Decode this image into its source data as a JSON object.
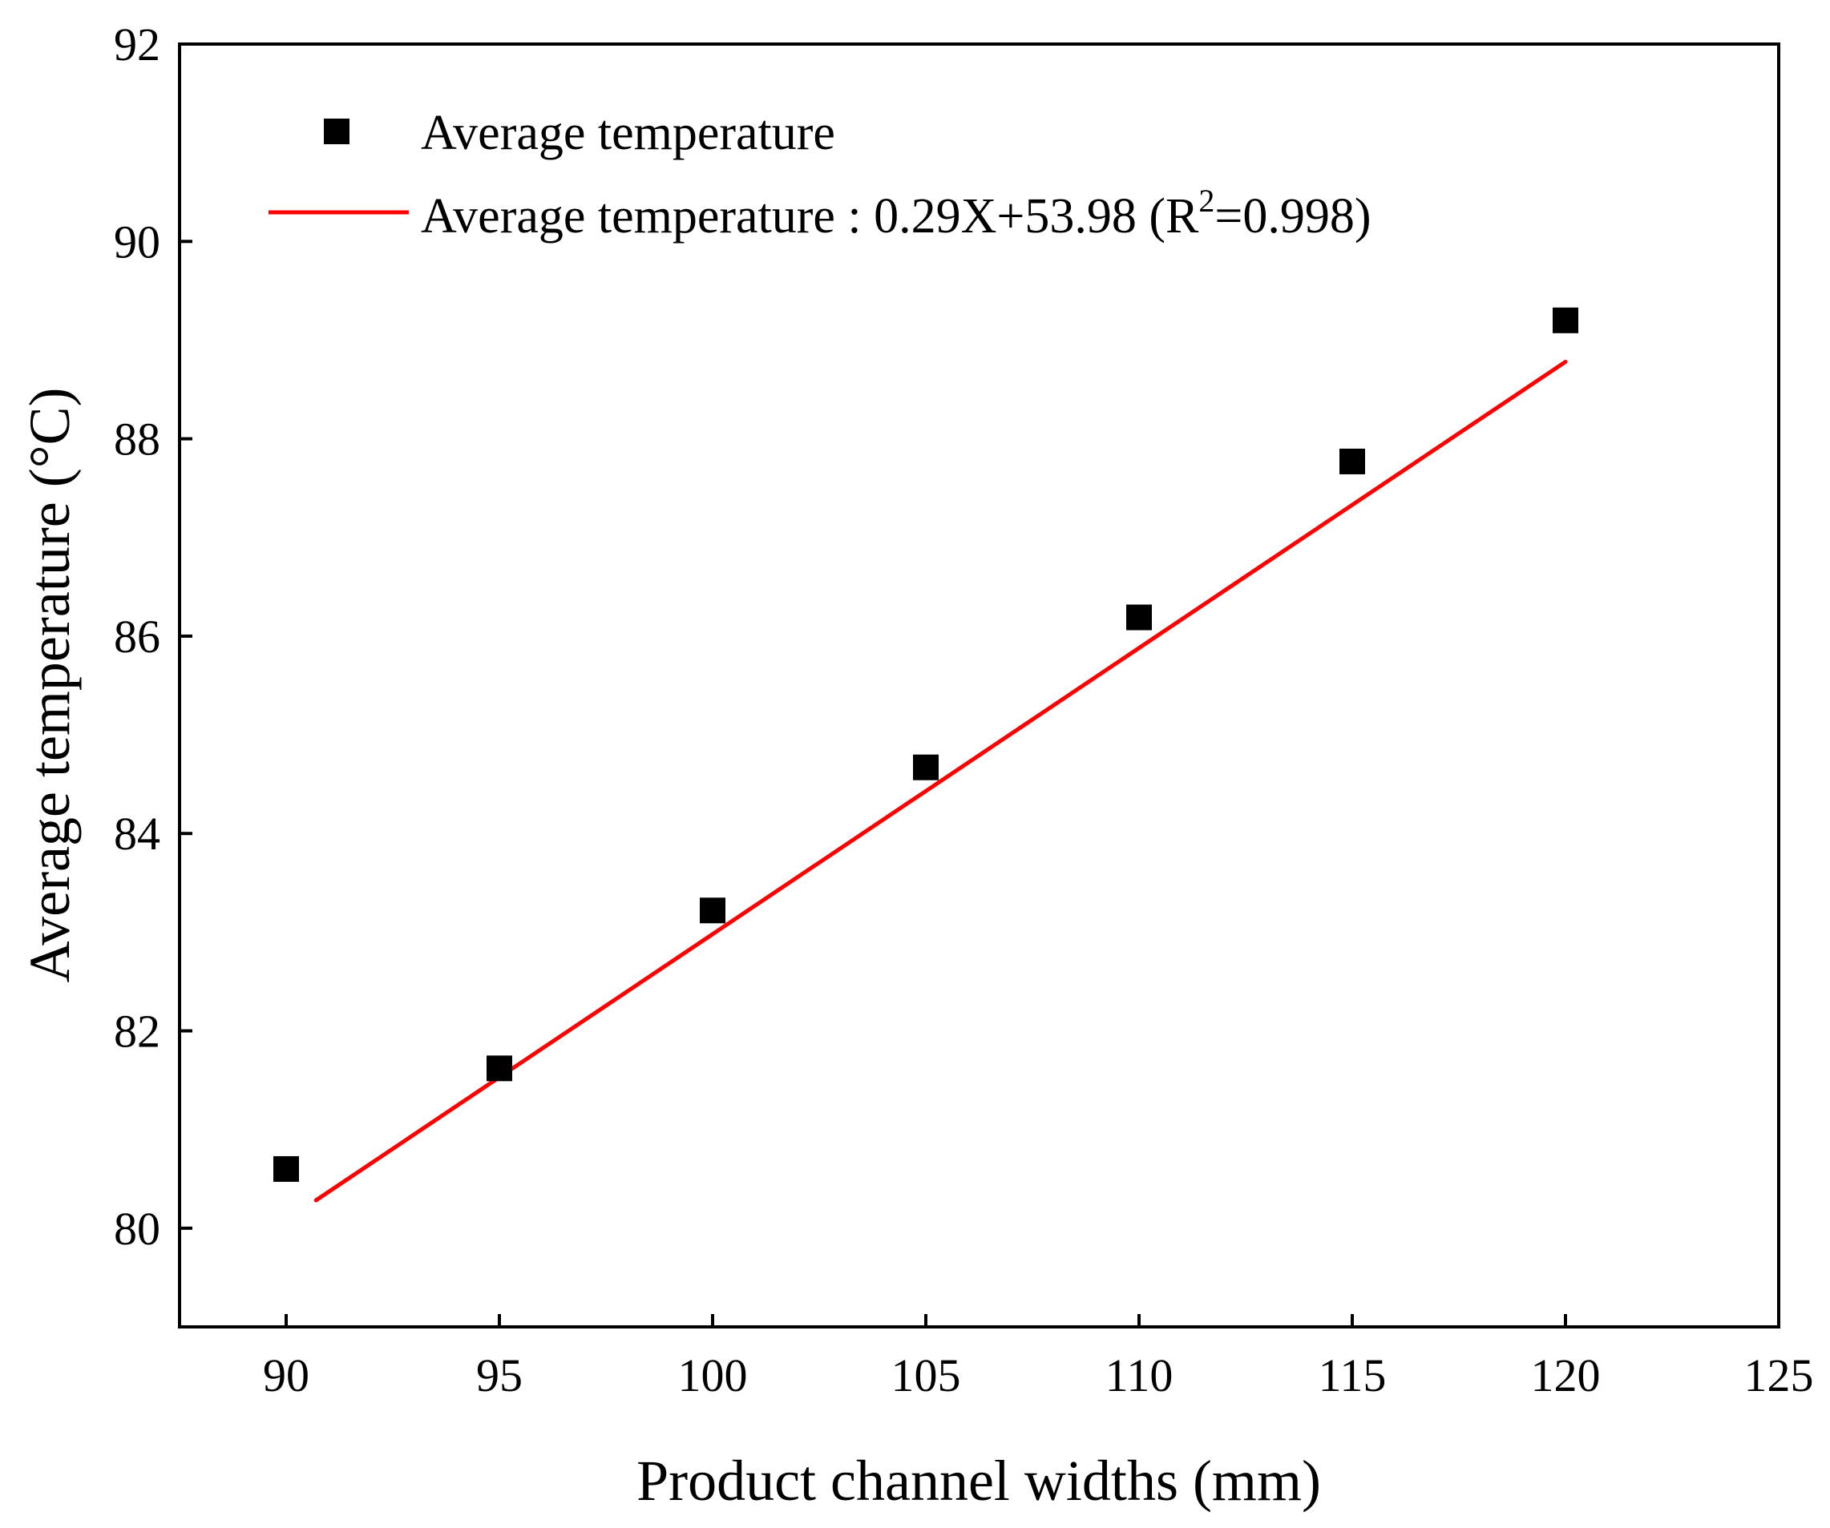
{
  "chart_data": {
    "type": "scatter",
    "xlabel": "Product channel widths (mm)",
    "ylabel": "Average temperature (°C)",
    "xlim": [
      87.5,
      125
    ],
    "ylim": [
      79,
      92
    ],
    "xticks": [
      90,
      95,
      100,
      105,
      110,
      115,
      120,
      125
    ],
    "yticks": [
      80,
      82,
      84,
      86,
      88,
      90,
      92
    ],
    "series": [
      {
        "name": "Average temperature",
        "marker": "square",
        "color": "#000000",
        "x": [
          90,
          95,
          100,
          105,
          110,
          115,
          120
        ],
        "y": [
          80.6,
          81.62,
          83.22,
          84.67,
          86.19,
          87.77,
          89.2
        ]
      }
    ],
    "fit": {
      "name": "Average temperature",
      "label_separator": " : ",
      "equation": "0.29X+53.98",
      "r2_open": "(R",
      "r2_sup": "2",
      "r2_value": "=0.998)",
      "slope": 0.29,
      "intercept": 53.98,
      "r2": 0.998,
      "color": "#ff0000",
      "x_range": [
        90.7,
        120
      ]
    },
    "legend": "top-left"
  }
}
